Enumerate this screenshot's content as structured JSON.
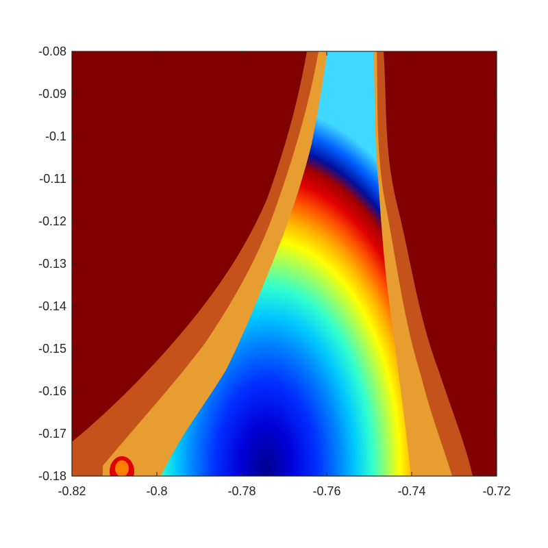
{
  "chart_data": {
    "type": "heatmap",
    "title": "",
    "xlabel": "",
    "ylabel": "",
    "xlim": [
      -0.82,
      -0.72
    ],
    "ylim": [
      -0.18,
      -0.08
    ],
    "x_ticks": [
      -0.82,
      -0.8,
      -0.78,
      -0.76,
      -0.74,
      -0.72
    ],
    "y_ticks": [
      -0.08,
      -0.09,
      -0.1,
      -0.11,
      -0.12,
      -0.13,
      -0.14,
      -0.15,
      -0.16,
      -0.17,
      -0.18
    ],
    "x_tick_labels": [
      "-0.82",
      "-0.8",
      "-0.78",
      "-0.76",
      "-0.74",
      "-0.72"
    ],
    "y_tick_labels": [
      "-0.08",
      "-0.09",
      "-0.1",
      "-0.11",
      "-0.12",
      "-0.13",
      "-0.14",
      "-0.15",
      "-0.16",
      "-0.17",
      "-0.18"
    ],
    "colormap": "jet",
    "background_color": "#800000",
    "grid": false,
    "legend": "none",
    "content": "Mandelbrot set escape-time fractal (seahorse valley region), color = iteration count"
  }
}
